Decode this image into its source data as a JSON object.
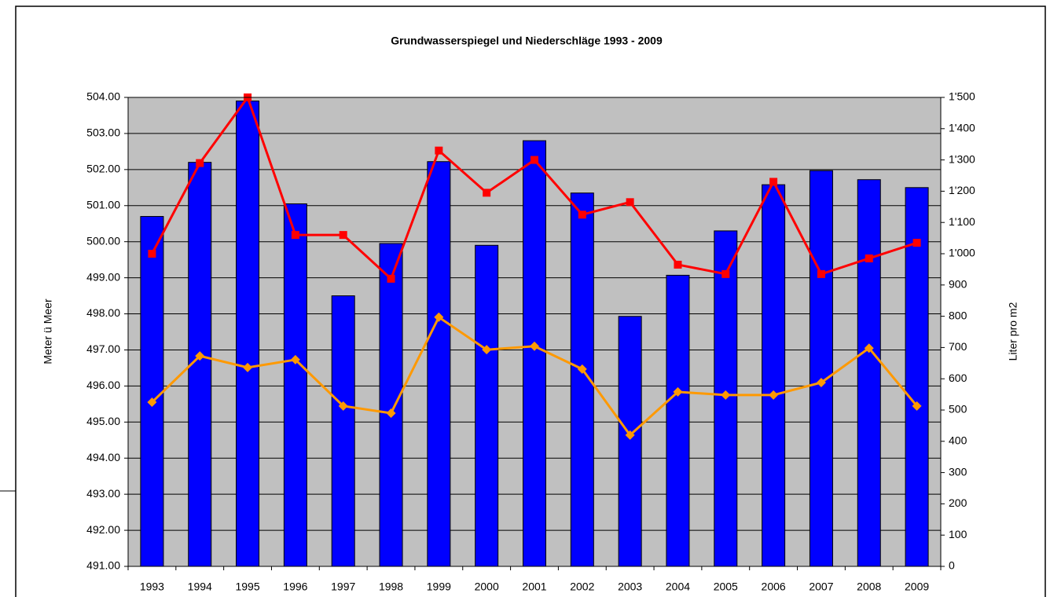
{
  "chart_data": {
    "type": "bar_line",
    "title": "Grundwasserspiegel und Niederschläge 1993 - 2009",
    "y_label": "Meter ü Meer",
    "y2_label": "Liter pro m2",
    "categories": [
      "1993",
      "1994",
      "1995",
      "1996",
      "1997",
      "1998",
      "1999",
      "2000",
      "2001",
      "2002",
      "2003",
      "2004",
      "2005",
      "2006",
      "2007",
      "2008",
      "2009"
    ],
    "series": [
      {
        "type": "bar",
        "color": "#0000ff",
        "values": [
          500.7,
          502.2,
          503.9,
          501.05,
          498.5,
          499.95,
          502.22,
          499.9,
          502.8,
          501.35,
          497.93,
          499.07,
          500.3,
          501.58,
          501.97,
          501.72,
          501.5
        ]
      },
      {
        "type": "line",
        "axis": "y2",
        "color": "#ff0000",
        "marker": "square",
        "values": [
          1000,
          1290,
          1500,
          1060,
          1060,
          920,
          1330,
          1195,
          1300,
          1125,
          1165,
          965,
          935,
          1230,
          935,
          985,
          1035
        ]
      },
      {
        "type": "line",
        "axis": "y2",
        "color": "#ff9900",
        "marker": "diamond",
        "values": [
          525,
          673,
          636,
          661,
          513,
          490,
          797,
          693,
          704,
          631,
          420,
          558,
          548,
          548,
          588,
          698,
          513
        ]
      }
    ],
    "ylim": [
      491,
      504
    ],
    "yticks": [
      {
        "value": 491,
        "label": "491.00"
      },
      {
        "value": 492,
        "label": "492.00"
      },
      {
        "value": 493,
        "label": "493.00"
      },
      {
        "value": 494,
        "label": "494.00"
      },
      {
        "value": 495,
        "label": "495.00"
      },
      {
        "value": 496,
        "label": "496.00"
      },
      {
        "value": 497,
        "label": "497.00"
      },
      {
        "value": 498,
        "label": "498.00"
      },
      {
        "value": 499,
        "label": "499.00"
      },
      {
        "value": 500,
        "label": "500.00"
      },
      {
        "value": 501,
        "label": "501.00"
      },
      {
        "value": 502,
        "label": "502.00"
      },
      {
        "value": 503,
        "label": "503.00"
      },
      {
        "value": 504,
        "label": "504.00"
      }
    ],
    "y2lim": [
      0,
      1500
    ],
    "y2ticks": [
      0,
      100,
      200,
      300,
      400,
      500,
      600,
      700,
      800,
      900,
      {
        "value": 1000,
        "label": "1'000"
      },
      {
        "value": 1100,
        "label": "1'100"
      },
      {
        "value": 1200,
        "label": "1'200"
      },
      {
        "value": 1300,
        "label": "1'300"
      },
      {
        "value": 1400,
        "label": "1'400"
      },
      {
        "value": 1500,
        "label": "1'500"
      }
    ],
    "grid": true
  }
}
